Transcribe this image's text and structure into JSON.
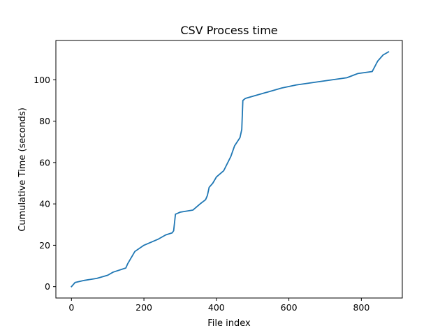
{
  "chart_data": {
    "type": "line",
    "title": "CSV Process time",
    "xlabel": "File index",
    "ylabel": "Cumulative Time (seconds)",
    "xlim": [
      -43,
      913
    ],
    "ylim": [
      -5.5,
      119
    ],
    "xticks": [
      0,
      200,
      400,
      600,
      800
    ],
    "yticks": [
      0,
      20,
      40,
      60,
      80,
      100
    ],
    "grid": false,
    "series": [
      {
        "color": "#1f77b4",
        "x": [
          0,
          10,
          35,
          70,
          100,
          115,
          150,
          155,
          175,
          200,
          240,
          260,
          278,
          282,
          287,
          300,
          335,
          355,
          370,
          375,
          380,
          390,
          400,
          420,
          440,
          450,
          465,
          470,
          473,
          480,
          500,
          540,
          580,
          620,
          680,
          760,
          790,
          830,
          845,
          860,
          875
        ],
        "y": [
          0,
          2,
          3,
          4,
          5.5,
          7,
          9,
          11,
          17,
          20,
          23,
          25,
          26,
          27,
          35,
          36,
          37,
          40,
          42,
          44,
          48,
          50,
          53,
          56,
          63,
          68,
          72,
          76,
          90,
          91,
          92,
          94,
          96,
          97.5,
          99,
          101,
          103,
          104,
          109,
          112,
          113.5
        ]
      }
    ]
  }
}
